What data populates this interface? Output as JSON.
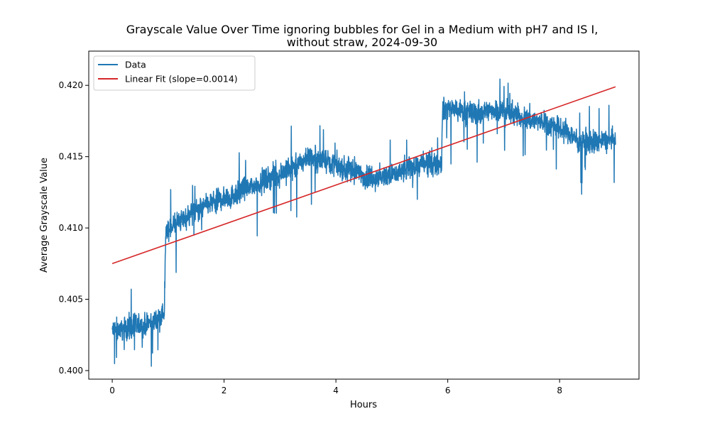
{
  "chart_data": {
    "type": "line",
    "title": "Grayscale Value Over Time ignoring bubbles for Gel in a Medium with pH7 and IS I,",
    "subtitle": "without straw, 2024-09-30",
    "xlabel": "Hours",
    "ylabel": "Average Grayscale Value",
    "xlim": [
      -0.42,
      9.42
    ],
    "ylim": [
      0.3994,
      0.4224
    ],
    "x_ticks": [
      0,
      2,
      4,
      6,
      8
    ],
    "x_tick_labels": [
      "0",
      "2",
      "4",
      "6",
      "8"
    ],
    "y_ticks": [
      0.4,
      0.405,
      0.41,
      0.415,
      0.42
    ],
    "y_tick_labels": [
      "0.400",
      "0.405",
      "0.410",
      "0.415",
      "0.420"
    ],
    "grid": false,
    "legend_placement": "top-left",
    "series": [
      {
        "name": "Data",
        "color": "#1f77b4",
        "x": [
          0,
          0.25,
          0.5,
          0.75,
          0.93,
          0.96,
          1.2,
          1.5,
          1.8,
          2.1,
          2.4,
          2.7,
          3.0,
          3.3,
          3.5,
          3.8,
          4.1,
          4.4,
          4.7,
          5.0,
          5.3,
          5.6,
          5.89,
          5.91,
          6.2,
          6.5,
          6.8,
          7.0,
          7.3,
          7.6,
          7.9,
          8.1,
          8.4,
          8.7,
          9.0
        ],
        "y": [
          0.4028,
          0.403,
          0.4031,
          0.4035,
          0.404,
          0.4098,
          0.4105,
          0.4112,
          0.4118,
          0.4122,
          0.4127,
          0.4133,
          0.4138,
          0.4143,
          0.415,
          0.4148,
          0.4142,
          0.4138,
          0.4135,
          0.4137,
          0.4142,
          0.4145,
          0.4145,
          0.4185,
          0.4182,
          0.418,
          0.4183,
          0.4182,
          0.4178,
          0.4175,
          0.4172,
          0.4168,
          0.416,
          0.416,
          0.4162
        ],
        "noise_amplitude": 0.0012
      },
      {
        "name": "Linear Fit (slope=0.0014)",
        "color": "#d62728",
        "x": [
          0,
          9
        ],
        "y": [
          0.4075,
          0.4199
        ]
      }
    ]
  }
}
